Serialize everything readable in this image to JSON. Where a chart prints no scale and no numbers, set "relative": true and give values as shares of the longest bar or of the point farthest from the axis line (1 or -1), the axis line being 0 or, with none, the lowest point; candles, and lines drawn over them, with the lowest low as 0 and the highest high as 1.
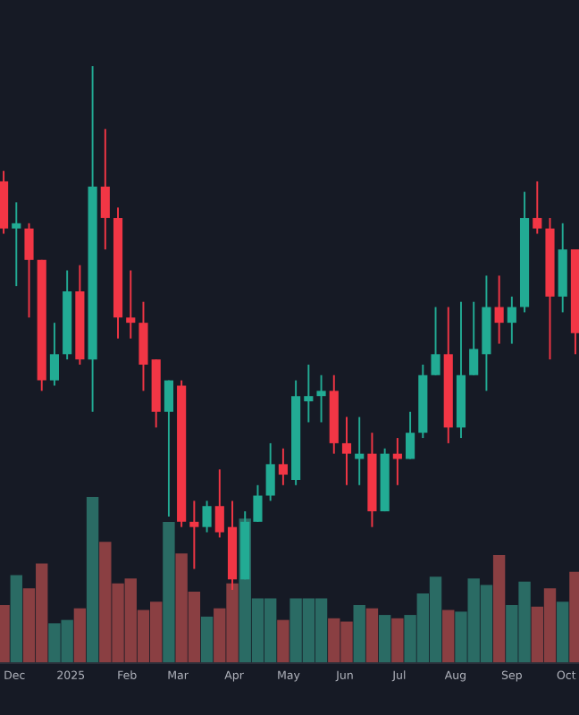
{
  "chart_data": [
    {
      "type": "bar",
      "relative": true,
      "tick_labels": "x",
      "x": [
        "2024-11-25",
        "2024-12-02",
        "2024-12-09",
        "2024-12-16",
        "2024-12-23",
        "2024-12-30",
        "2025-01-06",
        "2025-01-13",
        "2025-01-20",
        "2025-01-27",
        "2025-02-03",
        "2025-02-10",
        "2025-02-17",
        "2025-02-24",
        "2025-03-03",
        "2025-03-10",
        "2025-03-17",
        "2025-03-24",
        "2025-03-31",
        "2025-04-07",
        "2025-04-14",
        "2025-04-21",
        "2025-04-28",
        "2025-05-05",
        "2025-05-12",
        "2025-05-19",
        "2025-05-26",
        "2025-06-02",
        "2025-06-09",
        "2025-06-16",
        "2025-06-23",
        "2025-06-30",
        "2025-07-07",
        "2025-07-14",
        "2025-07-21",
        "2025-07-28",
        "2025-08-04",
        "2025-08-11",
        "2025-08-18",
        "2025-08-25",
        "2025-09-01",
        "2025-09-08",
        "2025-09-15",
        "2025-09-22",
        "2025-09-29",
        "2025-10-06"
      ],
      "values": [
        0.35,
        0.53,
        0.45,
        0.6,
        0.24,
        0.26,
        0.33,
        1.0,
        0.73,
        0.48,
        0.51,
        0.32,
        0.37,
        0.85,
        0.66,
        0.43,
        0.28,
        0.33,
        0.48,
        0.87,
        0.39,
        0.39,
        0.26,
        0.39,
        0.39,
        0.39,
        0.27,
        0.25,
        0.35,
        0.33,
        0.29,
        0.27,
        0.29,
        0.42,
        0.52,
        0.32,
        0.31,
        0.51,
        0.47,
        0.65,
        0.35,
        0.49,
        0.34,
        0.45,
        0.37,
        0.55
      ],
      "colors": [
        "#8a3f42",
        "#2a6b64",
        "#8a3f42",
        "#8a3f42",
        "#2a6b64",
        "#2a6b64",
        "#8a3f42",
        "#2a6b64",
        "#8a3f42",
        "#8a3f42",
        "#8a3f42",
        "#8a3f42",
        "#8a3f42",
        "#2a6b64",
        "#8a3f42",
        "#8a3f42",
        "#2a6b64",
        "#8a3f42",
        "#8a3f42",
        "#2a6b64",
        "#2a6b64",
        "#2a6b64",
        "#8a3f42",
        "#2a6b64",
        "#2a6b64",
        "#2a6b64",
        "#8a3f42",
        "#8a3f42",
        "#2a6b64",
        "#8a3f42",
        "#2a6b64",
        "#8a3f42",
        "#2a6b64",
        "#2a6b64",
        "#2a6b64",
        "#8a3f42",
        "#2a6b64",
        "#2a6b64",
        "#2a6b64",
        "#8a3f42",
        "#2a6b64",
        "#2a6b64",
        "#8a3f42",
        "#8a3f42",
        "#2a6b64",
        "#8a3f42"
      ],
      "xlim": [
        "2024-11-23",
        "2025-10-08"
      ],
      "xticks": [
        {
          "value": "2024-12-01",
          "label": "Dec"
        },
        {
          "value": "2025-01-01",
          "label": "2025"
        },
        {
          "value": "2025-02-01",
          "label": "Feb"
        },
        {
          "value": "2025-03-01",
          "label": "Mar"
        },
        {
          "value": "2025-04-01",
          "label": "Apr"
        },
        {
          "value": "2025-05-01",
          "label": "May"
        },
        {
          "value": "2025-06-01",
          "label": "Jun"
        },
        {
          "value": "2025-07-01",
          "label": "Jul"
        },
        {
          "value": "2025-08-01",
          "label": "Aug"
        },
        {
          "value": "2025-09-01",
          "label": "Sep"
        },
        {
          "value": "2025-10-01",
          "label": "Oct"
        }
      ]
    },
    {
      "type": "candlestick",
      "relative": true,
      "tick_labels": false,
      "x": [
        "2024-11-25",
        "2024-12-02",
        "2024-12-09",
        "2024-12-16",
        "2024-12-23",
        "2024-12-30",
        "2025-01-06",
        "2025-01-13",
        "2025-01-20",
        "2025-01-27",
        "2025-02-03",
        "2025-02-10",
        "2025-02-17",
        "2025-02-24",
        "2025-03-03",
        "2025-03-10",
        "2025-03-17",
        "2025-03-24",
        "2025-03-31",
        "2025-04-07",
        "2025-04-14",
        "2025-04-21",
        "2025-04-28",
        "2025-05-05",
        "2025-05-12",
        "2025-05-19",
        "2025-05-26",
        "2025-06-02",
        "2025-06-09",
        "2025-06-16",
        "2025-06-23",
        "2025-06-30",
        "2025-07-07",
        "2025-07-14",
        "2025-07-21",
        "2025-07-28",
        "2025-08-04",
        "2025-08-11",
        "2025-08-18",
        "2025-08-25",
        "2025-09-01",
        "2025-09-08",
        "2025-09-15",
        "2025-09-22",
        "2025-09-29",
        "2025-10-06"
      ],
      "ohlc": [
        [
          0.78,
          0.8,
          0.68,
          0.69
        ],
        [
          0.69,
          0.74,
          0.58,
          0.7
        ],
        [
          0.69,
          0.7,
          0.52,
          0.63
        ],
        [
          0.63,
          0.63,
          0.38,
          0.4
        ],
        [
          0.4,
          0.51,
          0.39,
          0.45
        ],
        [
          0.45,
          0.61,
          0.44,
          0.57
        ],
        [
          0.57,
          0.62,
          0.43,
          0.44
        ],
        [
          0.44,
          1.0,
          0.34,
          0.77
        ],
        [
          0.77,
          0.88,
          0.65,
          0.71
        ],
        [
          0.71,
          0.73,
          0.48,
          0.52
        ],
        [
          0.52,
          0.61,
          0.48,
          0.51
        ],
        [
          0.51,
          0.55,
          0.38,
          0.43
        ],
        [
          0.44,
          0.44,
          0.31,
          0.34
        ],
        [
          0.34,
          0.4,
          0.14,
          0.4
        ],
        [
          0.39,
          0.4,
          0.12,
          0.13
        ],
        [
          0.13,
          0.17,
          0.04,
          0.12
        ],
        [
          0.12,
          0.17,
          0.11,
          0.16
        ],
        [
          0.16,
          0.23,
          0.1,
          0.11
        ],
        [
          0.12,
          0.17,
          0.0,
          0.02
        ],
        [
          0.02,
          0.15,
          0.02,
          0.13
        ],
        [
          0.13,
          0.2,
          0.13,
          0.18
        ],
        [
          0.18,
          0.28,
          0.17,
          0.24
        ],
        [
          0.24,
          0.27,
          0.2,
          0.22
        ],
        [
          0.21,
          0.4,
          0.2,
          0.37
        ],
        [
          0.36,
          0.43,
          0.32,
          0.37
        ],
        [
          0.37,
          0.41,
          0.32,
          0.38
        ],
        [
          0.38,
          0.41,
          0.26,
          0.28
        ],
        [
          0.28,
          0.33,
          0.2,
          0.26
        ],
        [
          0.25,
          0.33,
          0.2,
          0.26
        ],
        [
          0.26,
          0.3,
          0.12,
          0.15
        ],
        [
          0.15,
          0.27,
          0.15,
          0.26
        ],
        [
          0.26,
          0.29,
          0.2,
          0.25
        ],
        [
          0.25,
          0.34,
          0.25,
          0.3
        ],
        [
          0.3,
          0.43,
          0.29,
          0.41
        ],
        [
          0.41,
          0.54,
          0.41,
          0.45
        ],
        [
          0.45,
          0.54,
          0.28,
          0.31
        ],
        [
          0.31,
          0.55,
          0.29,
          0.41
        ],
        [
          0.41,
          0.55,
          0.41,
          0.46
        ],
        [
          0.45,
          0.6,
          0.38,
          0.54
        ],
        [
          0.54,
          0.6,
          0.47,
          0.51
        ],
        [
          0.51,
          0.56,
          0.47,
          0.54
        ],
        [
          0.54,
          0.76,
          0.53,
          0.71
        ],
        [
          0.71,
          0.78,
          0.68,
          0.69
        ],
        [
          0.69,
          0.71,
          0.44,
          0.56
        ],
        [
          0.56,
          0.7,
          0.53,
          0.65
        ],
        [
          0.65,
          0.65,
          0.45,
          0.49
        ]
      ],
      "colors": [
        "#f23645",
        "#22ab94",
        "#f23645",
        "#f23645",
        "#22ab94",
        "#22ab94",
        "#f23645",
        "#22ab94",
        "#f23645",
        "#f23645",
        "#f23645",
        "#f23645",
        "#f23645",
        "#22ab94",
        "#f23645",
        "#f23645",
        "#22ab94",
        "#f23645",
        "#f23645",
        "#22ab94",
        "#22ab94",
        "#22ab94",
        "#f23645",
        "#22ab94",
        "#22ab94",
        "#22ab94",
        "#f23645",
        "#f23645",
        "#22ab94",
        "#f23645",
        "#22ab94",
        "#f23645",
        "#22ab94",
        "#22ab94",
        "#22ab94",
        "#f23645",
        "#22ab94",
        "#22ab94",
        "#22ab94",
        "#f23645",
        "#22ab94",
        "#22ab94",
        "#f23645",
        "#f23645",
        "#22ab94",
        "#f23645"
      ],
      "xlim": [
        "2024-11-23",
        "2025-10-08"
      ]
    }
  ]
}
